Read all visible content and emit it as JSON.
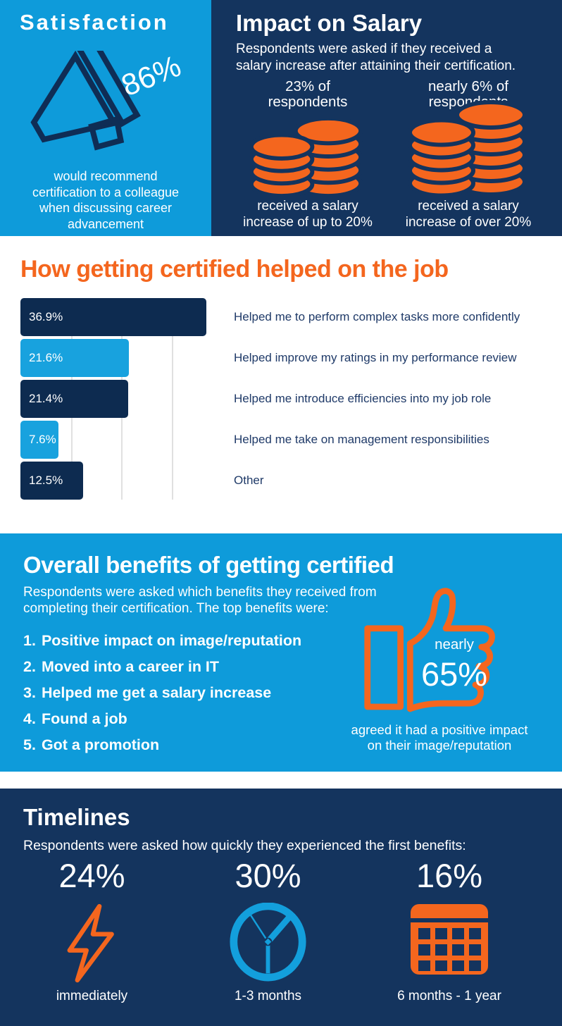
{
  "colors": {
    "light_blue": "#0E9BDA",
    "navy": "#14345E",
    "bar_navy": "#0D2B50",
    "bar_blue": "#18A2DE",
    "orange": "#F4661E",
    "category_text": "#1F3A68",
    "gridline": "#E0E0E0",
    "white": "#FFFFFF"
  },
  "satisfaction": {
    "title": "Satisfaction",
    "stat": "86%",
    "icon": "megaphone-icon",
    "description_lines": [
      "would recommend",
      "certification to a colleague",
      "when discussing career",
      "advancement"
    ]
  },
  "impact_on_salary": {
    "title": "Impact on Salary",
    "subtitle_lines": [
      "Respondents were asked if they received a",
      "salary increase after attaining their certification."
    ],
    "columns": [
      {
        "stat_lines": [
          "23% of",
          "respondents"
        ],
        "icon": "coins-stack-icon",
        "caption_lines": [
          "received a salary",
          "increase of up to 20%"
        ]
      },
      {
        "stat_lines": [
          "nearly 6% of",
          "respondents"
        ],
        "icon": "coins-stack-large-icon",
        "caption_lines": [
          "received a salary",
          "increase of over 20%"
        ]
      }
    ]
  },
  "chart_data": {
    "type": "bar",
    "orientation": "horizontal",
    "title": "How getting certified helped on the job",
    "categories": [
      "Helped me to perform complex tasks more confidently",
      "Helped improve my ratings in my performance review",
      "Helped me introduce efficiencies into my job role",
      "Helped me take on management responsibilities",
      "Other"
    ],
    "values": [
      36.9,
      21.6,
      21.4,
      7.6,
      12.5
    ],
    "value_labels": [
      "36.9%",
      "21.6%",
      "21.4%",
      "7.6%",
      "12.5%"
    ],
    "bar_colors": [
      "#0D2B50",
      "#18A2DE",
      "#0D2B50",
      "#18A2DE",
      "#0D2B50"
    ],
    "xlim": [
      0,
      40
    ],
    "gridlines_at": [
      10,
      20,
      30
    ],
    "grid": true,
    "legend": false,
    "value_label_position": "inside-left",
    "category_label_position": "right"
  },
  "benefits": {
    "title": "Overall benefits of getting certified",
    "subtitle_lines": [
      "Respondents were asked which benefits they received from",
      "completing their certification. The top benefits were:"
    ],
    "items": [
      {
        "num": "1.",
        "label": "Positive impact on image/reputation"
      },
      {
        "num": "2.",
        "label": "Moved into a career in IT"
      },
      {
        "num": "3.",
        "label": "Helped me get a salary increase"
      },
      {
        "num": "4.",
        "label": "Found a job"
      },
      {
        "num": "5.",
        "label": "Got a promotion"
      }
    ],
    "icon": "thumbs-up-icon",
    "stat_prefix": "nearly",
    "stat": "65%",
    "caption_lines": [
      "agreed it had a positive impact",
      "on their image/reputation"
    ]
  },
  "timelines": {
    "title": "Timelines",
    "subtitle": "Respondents were asked how quickly they experienced the first benefits:",
    "items": [
      {
        "stat": "24%",
        "icon": "lightning-icon",
        "label": "immediately"
      },
      {
        "stat": "30%",
        "icon": "clock-icon",
        "label": "1-3 months"
      },
      {
        "stat": "16%",
        "icon": "calendar-icon",
        "label": "6 months - 1 year"
      }
    ]
  }
}
